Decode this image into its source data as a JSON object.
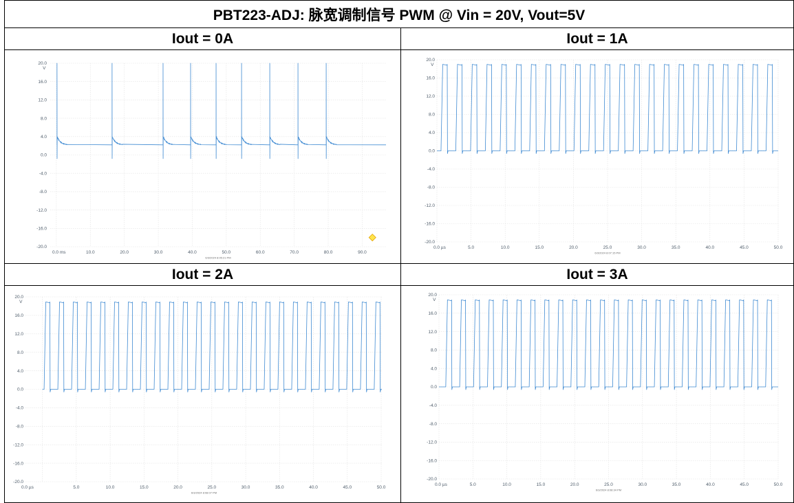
{
  "title": "PBT223-ADJ: 脉宽调制信号 PWM @ Vin = 20V, Vout=5V",
  "colors": {
    "border": "#000000",
    "grid": "#e2e2e2",
    "tick_text": "#4e5c6a",
    "timestamp_text": "#6a6a6a"
  },
  "chart_data": [
    {
      "type": "line",
      "title": "Iout = 0A",
      "y_unit": "V",
      "xlim": [
        -1.8,
        97.0
      ],
      "ylim": [
        -20,
        20
      ],
      "yticks": [
        20,
        16,
        12,
        8,
        4,
        0,
        -4,
        -8,
        -12,
        -16,
        -20
      ],
      "ytick_labels": [
        "20.0",
        "16.0",
        "12.0",
        "8.0",
        "4.0",
        "0.0",
        "-4.0",
        "-8.0",
        "-12.0",
        "-16.0",
        "-20.0"
      ],
      "xticks": [
        0,
        10,
        20,
        30,
        40,
        50,
        60,
        70,
        80,
        90
      ],
      "xtick_labels": [
        "0.0 ms",
        "10.0",
        "20.0",
        "30.0",
        "40.0",
        "50.0",
        "60.0",
        "70.0",
        "80.0",
        "90.0"
      ],
      "timestamp": "6/3/2024 8:05:21 PM",
      "grid": true,
      "line_color": "#3f8ad2",
      "series": [
        {
          "spike_times": [
            0.2,
            16.4,
            31.4,
            39.5,
            47.0,
            54.5,
            62.8,
            71.1,
            79.4
          ],
          "baseline": 2.2,
          "spike_max": 20.0,
          "spike_min": -0.8,
          "post_spike": 4.0,
          "settle": 3.0,
          "end": 97.0
        }
      ],
      "marker": {
        "x": 93.0,
        "y": -18.0,
        "color": "#ffe44d",
        "edge_color": "#e3a300"
      }
    },
    {
      "type": "line",
      "title": "Iout = 1A",
      "y_unit": "V",
      "xlim": [
        0,
        50
      ],
      "ylim": [
        -20,
        20
      ],
      "yticks": [
        20,
        16,
        12,
        8,
        4,
        0,
        -4,
        -8,
        -12,
        -16,
        -20
      ],
      "ytick_labels": [
        "20.0",
        "16.0",
        "12.0",
        "8.0",
        "4.0",
        "0.0",
        "-4.0",
        "-8.0",
        "-12.0",
        "-16.0",
        "-20.0"
      ],
      "xticks": [
        0,
        5,
        10,
        15,
        20,
        25,
        30,
        35,
        40,
        45,
        50
      ],
      "xtick_labels": [
        "0.0 µs",
        "5.0",
        "10.0",
        "15.0",
        "20.0",
        "25.0",
        "30.0",
        "35.0",
        "40.0",
        "45.0",
        "50.0"
      ],
      "timestamp": "6/3/2024 8:07:15 PM",
      "grid": true,
      "line_color": "#3f8ad2",
      "series": [
        {
          "first_rise": 0.6,
          "period": 2.165,
          "pulse_width": 0.91,
          "rise_time": 0.25,
          "high": 19.0,
          "low": 0.0,
          "undershoot": -0.6,
          "last_fall": 49.2,
          "end": 50.0
        }
      ]
    },
    {
      "type": "line",
      "title": "Iout = 2A",
      "y_unit": "V",
      "xlim": [
        -2.5,
        50.2
      ],
      "ylim": [
        -20,
        20
      ],
      "yticks": [
        20,
        16,
        12,
        8,
        4,
        0,
        -4,
        -8,
        -12,
        -16,
        -20
      ],
      "ytick_labels": [
        "20.0",
        "16.0",
        "12.0",
        "8.0",
        "4.0",
        "0.0",
        "-4.0",
        "-8.0",
        "-12.0",
        "-16.0",
        "-20.0"
      ],
      "xticks": [
        0,
        5,
        10,
        15,
        20,
        25,
        30,
        35,
        40,
        45,
        50
      ],
      "xtick_labels": [
        "0.0 µs",
        "5.0",
        "10.0",
        "15.0",
        "20.0",
        "25.0",
        "30.0",
        "35.0",
        "40.0",
        "45.0",
        "50.0"
      ],
      "timestamp": "6/3/2024 8:08:07 PM",
      "grid": true,
      "line_color": "#3f8ad2",
      "series": [
        {
          "first_rise": 0.25,
          "period": 2.03,
          "pulse_width": 0.85,
          "rise_time": 0.25,
          "high": 18.9,
          "low": 0.0,
          "undershoot": -0.6,
          "last_fall": 49.8,
          "end": 50.1
        }
      ]
    },
    {
      "type": "line",
      "title": "Iout = 3A",
      "y_unit": "V",
      "xlim": [
        0,
        50
      ],
      "ylim": [
        -20,
        20
      ],
      "yticks": [
        20,
        16,
        12,
        8,
        4,
        0,
        -4,
        -8,
        -12,
        -16,
        -20
      ],
      "ytick_labels": [
        "20.0",
        "16.0",
        "12.0",
        "8.0",
        "4.0",
        "0.0",
        "-4.0",
        "-8.0",
        "-12.0",
        "-16.0",
        "-20.0"
      ],
      "xticks": [
        0,
        5,
        10,
        15,
        20,
        25,
        30,
        35,
        40,
        45,
        50
      ],
      "xtick_labels": [
        "0.0 µs",
        "5.0",
        "10.0",
        "15.0",
        "20.0",
        "25.0",
        "30.0",
        "35.0",
        "40.0",
        "45.0",
        "50.0"
      ],
      "timestamp": "6/3/2024 8:08:34 PM",
      "grid": true,
      "line_color": "#3f8ad2",
      "series": [
        {
          "first_rise": 1.0,
          "period": 2.05,
          "pulse_width": 0.86,
          "rise_time": 0.25,
          "high": 18.9,
          "low": 0.0,
          "undershoot": -0.6,
          "last_fall": 49.0,
          "end": 50.0
        }
      ]
    }
  ]
}
